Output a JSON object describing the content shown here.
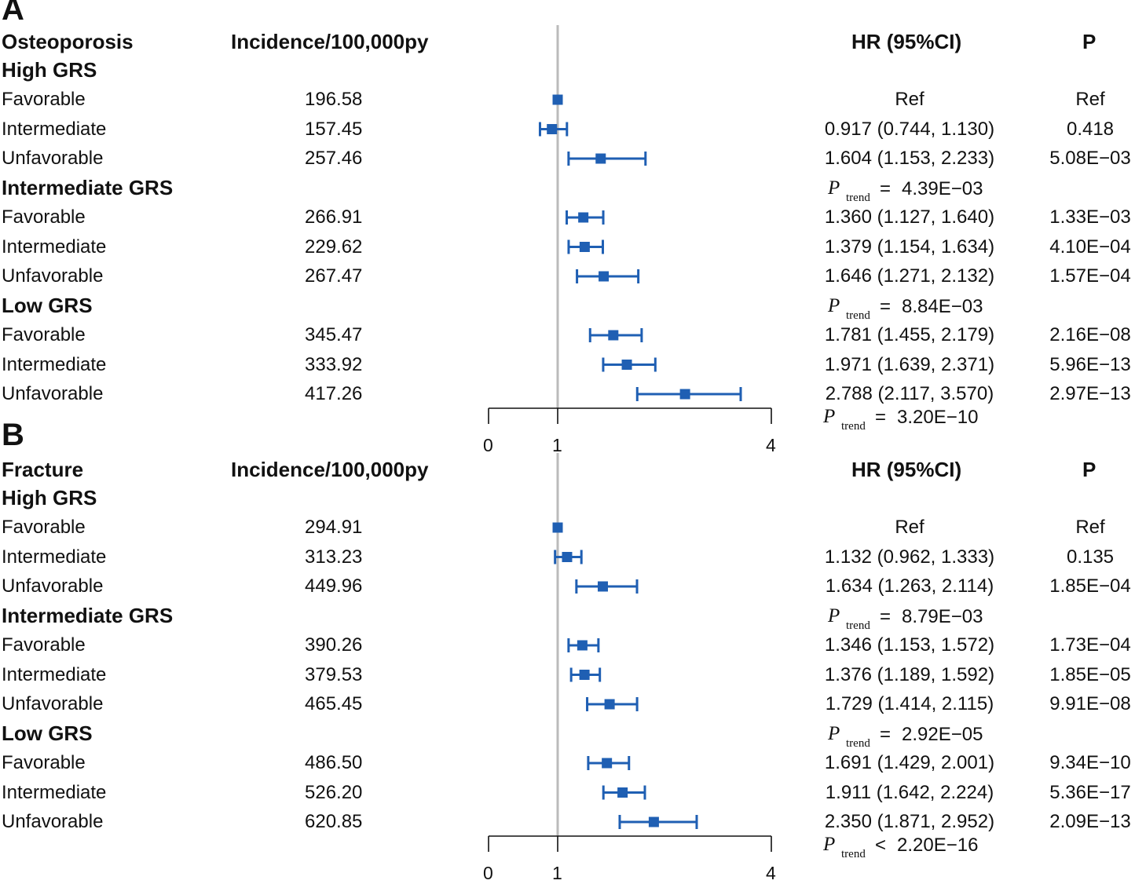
{
  "colors": {
    "marker": "#1f5fb3",
    "refline": "#bbbbbb",
    "axis": "#111111",
    "text": "#111111"
  },
  "panels": [
    {
      "id": "A",
      "letter": "A",
      "outcome": "Osteoporosis",
      "incidence_header": "Incidence/100,000py",
      "hr_header": "HR (95%CI)",
      "p_header": "P",
      "trend_label": "P",
      "trend_sub": "trend",
      "groups": [
        {
          "name": "High GRS",
          "trend": null,
          "rows": [
            {
              "label": "Favorable",
              "incidence": "196.58",
              "hr_text": "Ref",
              "p": "Ref",
              "hr": 1.0,
              "lo": null,
              "hi": null
            },
            {
              "label": "Intermediate",
              "incidence": "157.45",
              "hr_text": "0.917 (0.744, 1.130)",
              "p": "0.418",
              "hr": 0.917,
              "lo": 0.744,
              "hi": 1.13
            },
            {
              "label": "Unfavorable",
              "incidence": "257.46",
              "hr_text": "1.604 (1.153, 2.233)",
              "p": "5.08E−03",
              "hr": 1.604,
              "lo": 1.153,
              "hi": 2.233
            }
          ]
        },
        {
          "name": "Intermediate GRS",
          "trend": {
            "op": "=",
            "value": "4.39E−03"
          },
          "rows": [
            {
              "label": "Favorable",
              "incidence": "266.91",
              "hr_text": "1.360 (1.127, 1.640)",
              "p": "1.33E−03",
              "hr": 1.36,
              "lo": 1.127,
              "hi": 1.64
            },
            {
              "label": "Intermediate",
              "incidence": "229.62",
              "hr_text": "1.379 (1.154, 1.634)",
              "p": "4.10E−04",
              "hr": 1.379,
              "lo": 1.154,
              "hi": 1.634
            },
            {
              "label": "Unfavorable",
              "incidence": "267.47",
              "hr_text": "1.646 (1.271, 2.132)",
              "p": "1.57E−04",
              "hr": 1.646,
              "lo": 1.271,
              "hi": 2.132
            }
          ]
        },
        {
          "name": "Low GRS",
          "trend": {
            "op": "=",
            "value": "8.84E−03"
          },
          "rows": [
            {
              "label": "Favorable",
              "incidence": "345.47",
              "hr_text": "1.781 (1.455, 2.179)",
              "p": "2.16E−08",
              "hr": 1.781,
              "lo": 1.455,
              "hi": 2.179
            },
            {
              "label": "Intermediate",
              "incidence": "333.92",
              "hr_text": "1.971 (1.639, 2.371)",
              "p": "5.96E−13",
              "hr": 1.971,
              "lo": 1.639,
              "hi": 2.371
            },
            {
              "label": "Unfavorable",
              "incidence": "417.26",
              "hr_text": "2.788 (2.117, 3.570)",
              "p": "2.97E−13",
              "hr": 2.788,
              "lo": 2.117,
              "hi": 3.57
            }
          ]
        }
      ],
      "overall_trend": {
        "op": "=",
        "value": "3.20E−10"
      },
      "axis": {
        "ticks": [
          "0",
          "1",
          "4"
        ],
        "reference": 1
      }
    },
    {
      "id": "B",
      "letter": "B",
      "outcome": "Fracture",
      "incidence_header": "Incidence/100,000py",
      "hr_header": "HR (95%CI)",
      "p_header": "P",
      "trend_label": "P",
      "trend_sub": "trend",
      "groups": [
        {
          "name": "High GRS",
          "trend": null,
          "rows": [
            {
              "label": "Favorable",
              "incidence": "294.91",
              "hr_text": "Ref",
              "p": "Ref",
              "hr": 1.0,
              "lo": null,
              "hi": null
            },
            {
              "label": "Intermediate",
              "incidence": "313.23",
              "hr_text": "1.132 (0.962, 1.333)",
              "p": "0.135",
              "hr": 1.132,
              "lo": 0.962,
              "hi": 1.333
            },
            {
              "label": "Unfavorable",
              "incidence": "449.96",
              "hr_text": "1.634 (1.263, 2.114)",
              "p": "1.85E−04",
              "hr": 1.634,
              "lo": 1.263,
              "hi": 2.114
            }
          ]
        },
        {
          "name": "Intermediate GRS",
          "trend": {
            "op": "=",
            "value": "8.79E−03"
          },
          "rows": [
            {
              "label": "Favorable",
              "incidence": "390.26",
              "hr_text": "1.346 (1.153, 1.572)",
              "p": "1.73E−04",
              "hr": 1.346,
              "lo": 1.153,
              "hi": 1.572
            },
            {
              "label": "Intermediate",
              "incidence": "379.53",
              "hr_text": "1.376 (1.189, 1.592)",
              "p": "1.85E−05",
              "hr": 1.376,
              "lo": 1.189,
              "hi": 1.592
            },
            {
              "label": "Unfavorable",
              "incidence": "465.45",
              "hr_text": "1.729 (1.414, 2.115)",
              "p": "9.91E−08",
              "hr": 1.729,
              "lo": 1.414,
              "hi": 2.115
            }
          ]
        },
        {
          "name": "Low GRS",
          "trend": {
            "op": "=",
            "value": "2.92E−05"
          },
          "rows": [
            {
              "label": "Favorable",
              "incidence": "486.50",
              "hr_text": "1.691 (1.429, 2.001)",
              "p": "9.34E−10",
              "hr": 1.691,
              "lo": 1.429,
              "hi": 2.001
            },
            {
              "label": "Intermediate",
              "incidence": "526.20",
              "hr_text": "1.911 (1.642, 2.224)",
              "p": "5.36E−17",
              "hr": 1.911,
              "lo": 1.642,
              "hi": 2.224
            },
            {
              "label": "Unfavorable",
              "incidence": "620.85",
              "hr_text": "2.350 (1.871, 2.952)",
              "p": "2.09E−13",
              "hr": 2.35,
              "lo": 1.871,
              "hi": 2.952
            }
          ]
        }
      ],
      "overall_trend": {
        "op": "<",
        "value": "2.20E−16"
      },
      "axis": {
        "ticks": [
          "0",
          "1",
          "4"
        ],
        "reference": 1
      }
    }
  ],
  "chart_data": [
    {
      "type": "forest",
      "title": "Osteoporosis",
      "categories": [
        "High GRS / Favorable",
        "High GRS / Intermediate",
        "High GRS / Unfavorable",
        "Intermediate GRS / Favorable",
        "Intermediate GRS / Intermediate",
        "Intermediate GRS / Unfavorable",
        "Low GRS / Favorable",
        "Low GRS / Intermediate",
        "Low GRS / Unfavorable"
      ],
      "hr": [
        1.0,
        0.917,
        1.604,
        1.36,
        1.379,
        1.646,
        1.781,
        1.971,
        2.788
      ],
      "ci_lo": [
        null,
        0.744,
        1.153,
        1.127,
        1.154,
        1.271,
        1.455,
        1.639,
        2.117
      ],
      "ci_hi": [
        null,
        1.13,
        2.233,
        1.64,
        1.634,
        2.132,
        2.179,
        2.371,
        3.57
      ],
      "incidence": [
        196.58,
        157.45,
        257.46,
        266.91,
        229.62,
        267.47,
        345.47,
        333.92,
        417.26
      ],
      "xticks": [
        0,
        1,
        4
      ],
      "reference_line": 1
    },
    {
      "type": "forest",
      "title": "Fracture",
      "categories": [
        "High GRS / Favorable",
        "High GRS / Intermediate",
        "High GRS / Unfavorable",
        "Intermediate GRS / Favorable",
        "Intermediate GRS / Intermediate",
        "Intermediate GRS / Unfavorable",
        "Low GRS / Favorable",
        "Low GRS / Intermediate",
        "Low GRS / Unfavorable"
      ],
      "hr": [
        1.0,
        1.132,
        1.634,
        1.346,
        1.376,
        1.729,
        1.691,
        1.911,
        2.35
      ],
      "ci_lo": [
        null,
        0.962,
        1.263,
        1.153,
        1.189,
        1.414,
        1.429,
        1.642,
        1.871
      ],
      "ci_hi": [
        null,
        1.333,
        2.114,
        1.572,
        1.592,
        2.115,
        2.001,
        2.224,
        2.952
      ],
      "incidence": [
        294.91,
        313.23,
        449.96,
        390.26,
        379.53,
        465.45,
        486.5,
        526.2,
        620.85
      ],
      "xticks": [
        0,
        1,
        4
      ],
      "reference_line": 1
    }
  ]
}
